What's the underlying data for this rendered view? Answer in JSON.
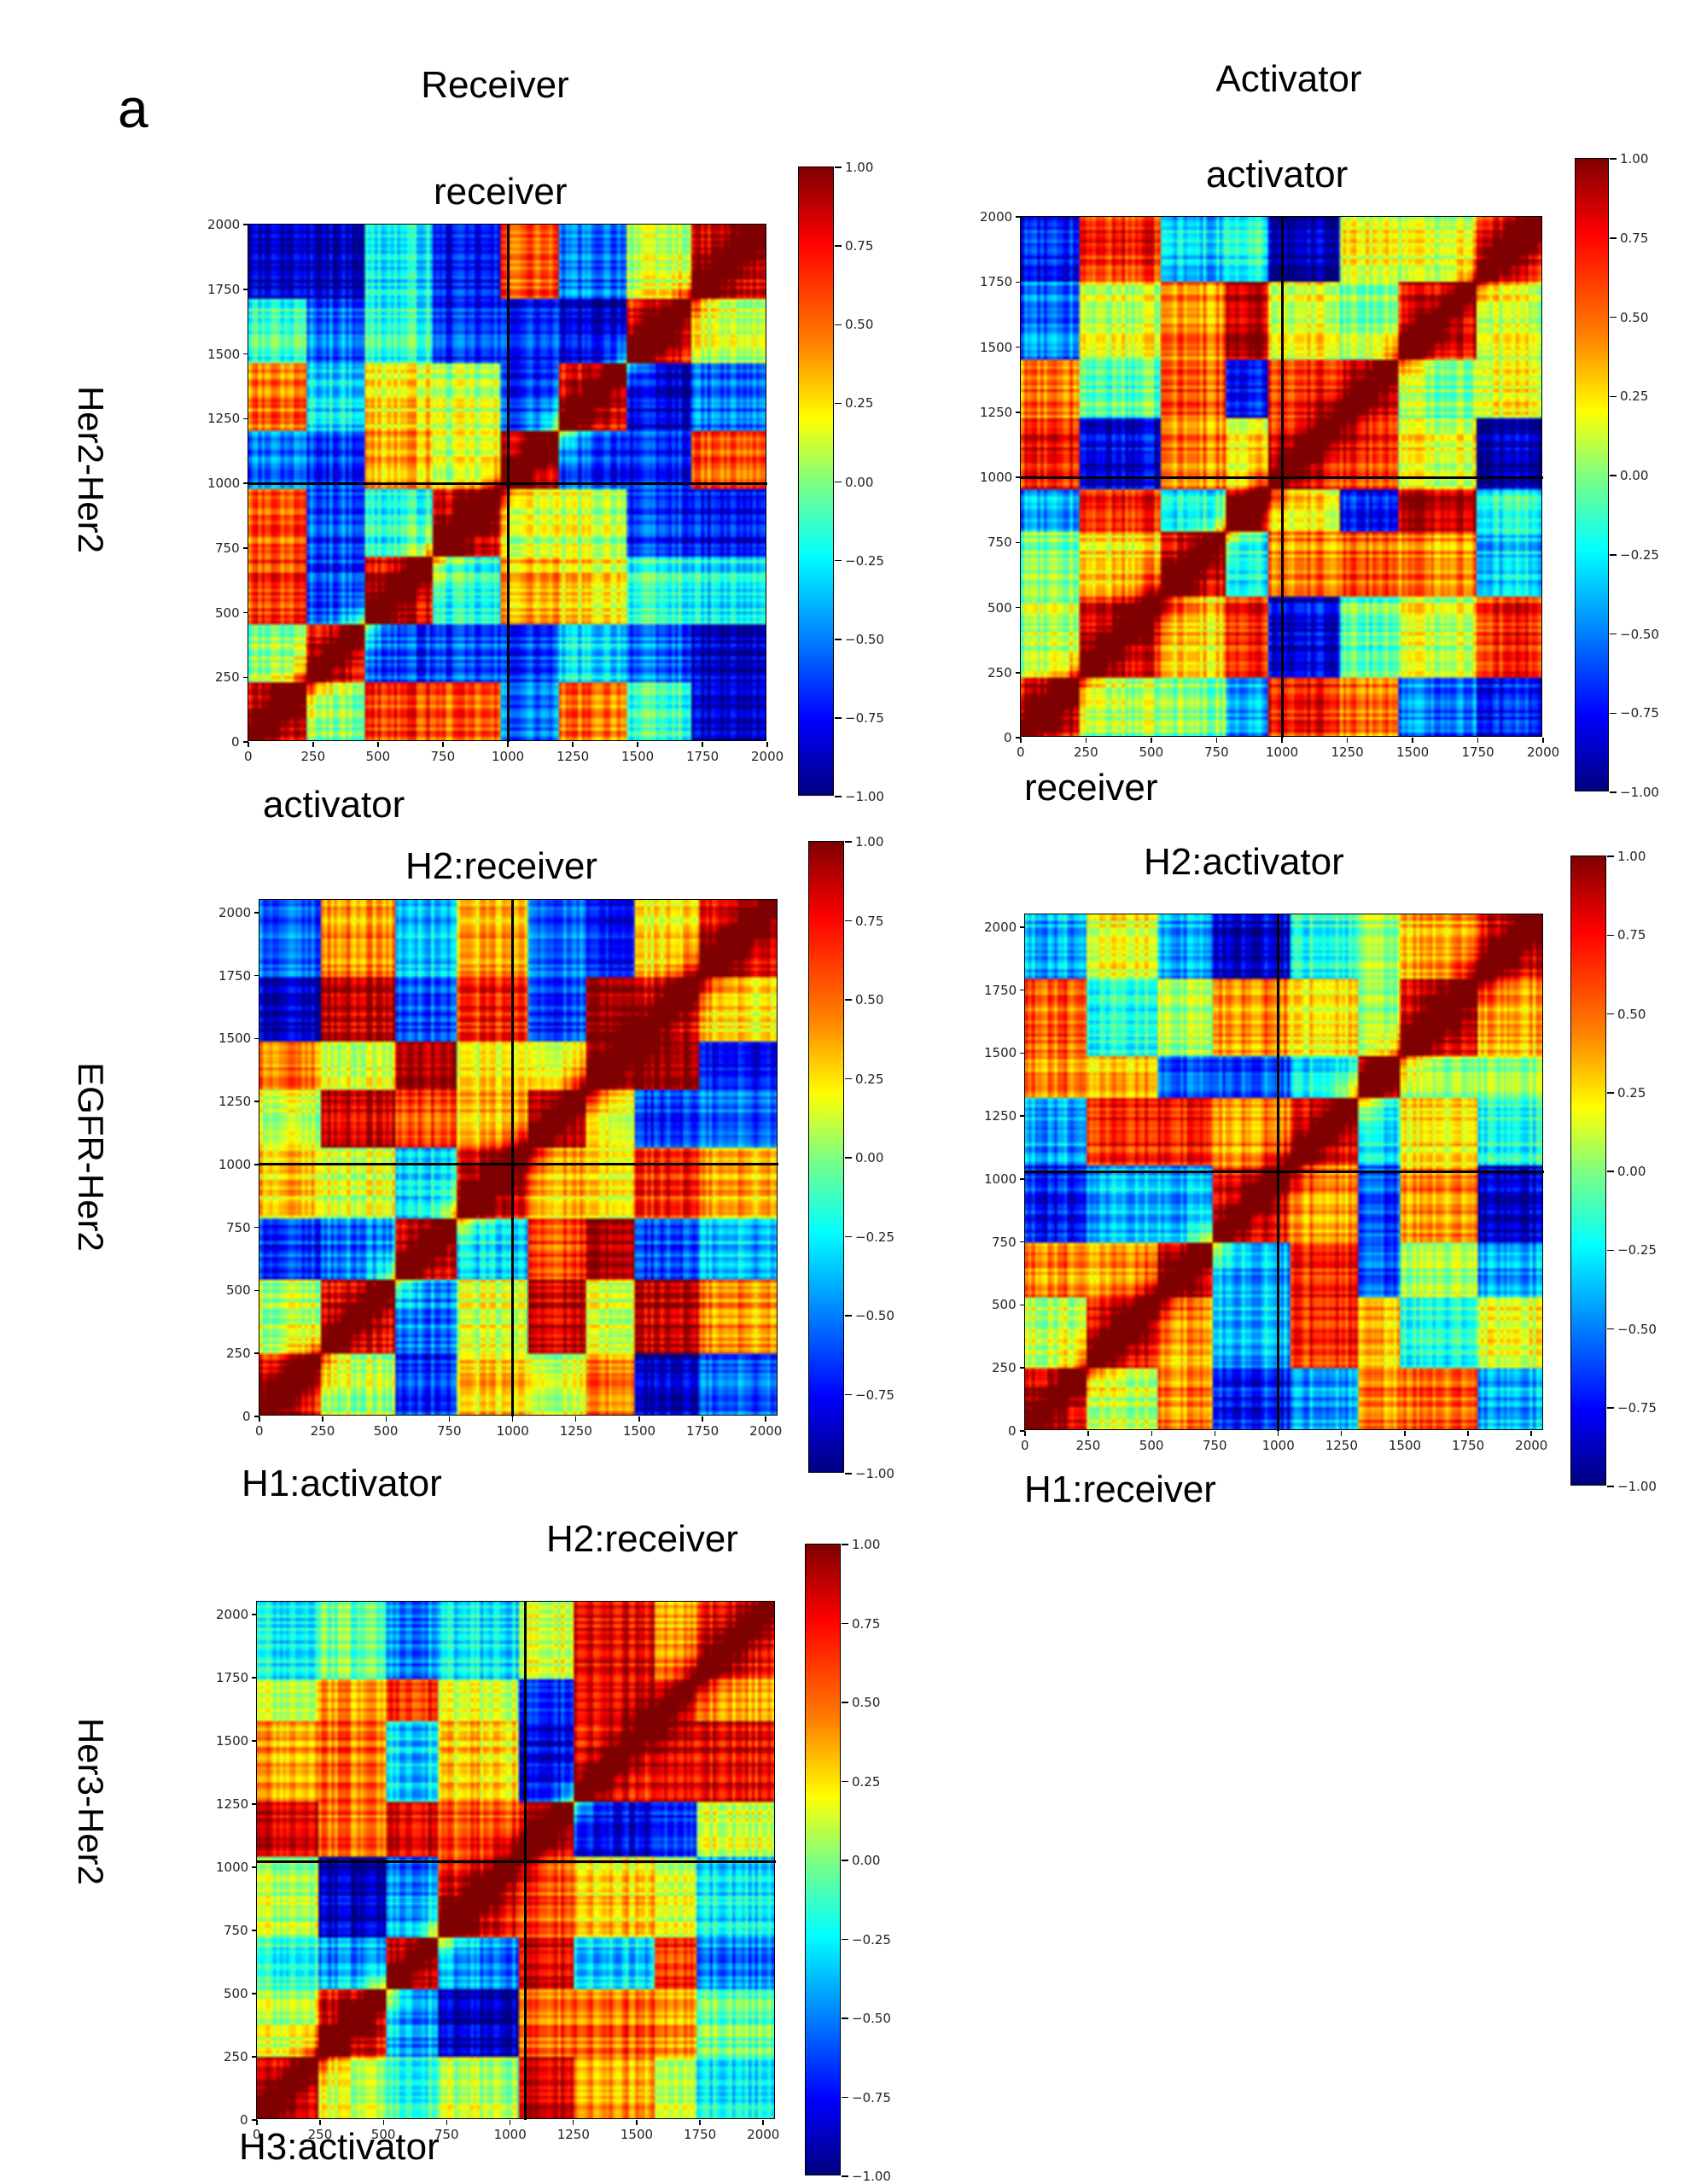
{
  "figure": {
    "panel_letter": "a",
    "column_titles": [
      "Receiver",
      "Activator"
    ],
    "row_labels": [
      "Her2-Her2",
      "EGFR-Her2",
      "Her3-Her2"
    ]
  },
  "colorbar": {
    "ticks": [
      "1.00",
      "0.75",
      "0.50",
      "0.25",
      "0.00",
      "−0.25",
      "−0.50",
      "−0.75",
      "−1.00"
    ],
    "colormap": "jet",
    "colors": [
      "#00007f",
      "#0000ff",
      "#0080ff",
      "#00ffff",
      "#80ff80",
      "#ffff00",
      "#ff8000",
      "#ff0000",
      "#7f0000"
    ]
  },
  "chart_data": [
    {
      "type": "heatmap",
      "row": "Her2-Her2",
      "column": "Receiver",
      "title": "receiver",
      "xlabel": "activator",
      "ylabel": "",
      "xlim": [
        0,
        2000
      ],
      "ylim": [
        0,
        2000
      ],
      "x_ticks": [
        "0",
        "250",
        "500",
        "750",
        "1000",
        "1250",
        "1500",
        "1750",
        "2000"
      ],
      "y_ticks": [
        "0",
        "250",
        "500",
        "750",
        "1000",
        "1250",
        "1500",
        "1750",
        "2000"
      ],
      "divider_x": 1000,
      "divider_y": 1000,
      "value_range": [
        -1.0,
        1.0
      ]
    },
    {
      "type": "heatmap",
      "row": "Her2-Her2",
      "column": "Activator",
      "title": "activator",
      "xlabel": "receiver",
      "ylabel": "",
      "xlim": [
        0,
        2000
      ],
      "ylim": [
        0,
        2000
      ],
      "x_ticks": [
        "0",
        "250",
        "500",
        "750",
        "1000",
        "1250",
        "1500",
        "1750",
        "2000"
      ],
      "y_ticks": [
        "0",
        "250",
        "500",
        "750",
        "1000",
        "1250",
        "1500",
        "1750",
        "2000"
      ],
      "divider_x": 1000,
      "divider_y": 1000,
      "value_range": [
        -1.0,
        1.0
      ]
    },
    {
      "type": "heatmap",
      "row": "EGFR-Her2",
      "column": "Receiver",
      "title": "H2:receiver",
      "xlabel": "H1:activator",
      "ylabel": "",
      "xlim": [
        0,
        2050
      ],
      "ylim": [
        0,
        2050
      ],
      "x_ticks": [
        "0",
        "250",
        "500",
        "750",
        "1000",
        "1250",
        "1500",
        "1750",
        "2000"
      ],
      "y_ticks": [
        "0",
        "250",
        "500",
        "750",
        "1000",
        "1250",
        "1500",
        "1750",
        "2000"
      ],
      "divider_x": 1000,
      "divider_y": 1000,
      "value_range": [
        -1.0,
        1.0
      ]
    },
    {
      "type": "heatmap",
      "row": "EGFR-Her2",
      "column": "Activator",
      "title": "H2:activator",
      "xlabel": "H1:receiver",
      "ylabel": "",
      "xlim": [
        0,
        2050
      ],
      "ylim": [
        0,
        2050
      ],
      "x_ticks": [
        "0",
        "250",
        "500",
        "750",
        "1000",
        "1250",
        "1500",
        "1750",
        "2000"
      ],
      "y_ticks": [
        "0",
        "250",
        "500",
        "750",
        "1000",
        "1250",
        "1500",
        "1750",
        "2000"
      ],
      "divider_x": 1000,
      "divider_y": 1030,
      "value_range": [
        -1.0,
        1.0
      ]
    },
    {
      "type": "heatmap",
      "row": "Her3-Her2",
      "column": "Receiver",
      "title": "H2:receiver",
      "xlabel": "H3:activator",
      "ylabel": "",
      "xlim": [
        0,
        2050
      ],
      "ylim": [
        0,
        2050
      ],
      "x_ticks": [
        "0",
        "250",
        "500",
        "750",
        "1000",
        "1250",
        "1500",
        "1750",
        "2000"
      ],
      "y_ticks": [
        "0",
        "250",
        "500",
        "750",
        "1000",
        "1250",
        "1500",
        "1750",
        "2000"
      ],
      "divider_x": 1060,
      "divider_y": 1020,
      "value_range": [
        -1.0,
        1.0
      ]
    }
  ]
}
